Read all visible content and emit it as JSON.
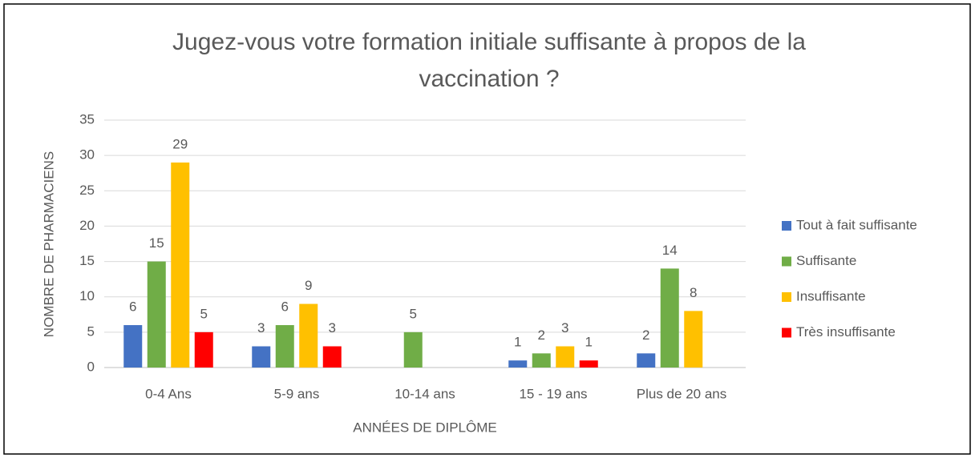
{
  "chart_data": {
    "type": "bar",
    "title": "Jugez-vous votre formation initiale suffisante à propos de la vaccination ?",
    "x_label": "ANNÉES DE DIPLÔME",
    "y_label": "NOMBRE DE PHARMACIENS",
    "categories": [
      "0-4 Ans",
      "5-9 ans",
      "10-14 ans",
      "15 - 19 ans",
      "Plus de 20 ans"
    ],
    "series": [
      {
        "name": "Tout à fait suffisante",
        "color": "#4472c4",
        "values": [
          6,
          3,
          null,
          1,
          2
        ]
      },
      {
        "name": "Suffisante",
        "color": "#70ad47",
        "values": [
          15,
          6,
          5,
          2,
          14
        ]
      },
      {
        "name": "Insuffisante",
        "color": "#ffc000",
        "values": [
          29,
          9,
          null,
          3,
          8
        ]
      },
      {
        "name": "Très insuffisante",
        "color": "#ff0000",
        "values": [
          5,
          3,
          null,
          1,
          null
        ]
      }
    ],
    "ylim": [
      0,
      35
    ],
    "yticks": [
      0,
      5,
      10,
      15,
      20,
      25,
      30,
      35
    ],
    "grid": true,
    "legend": "right"
  }
}
